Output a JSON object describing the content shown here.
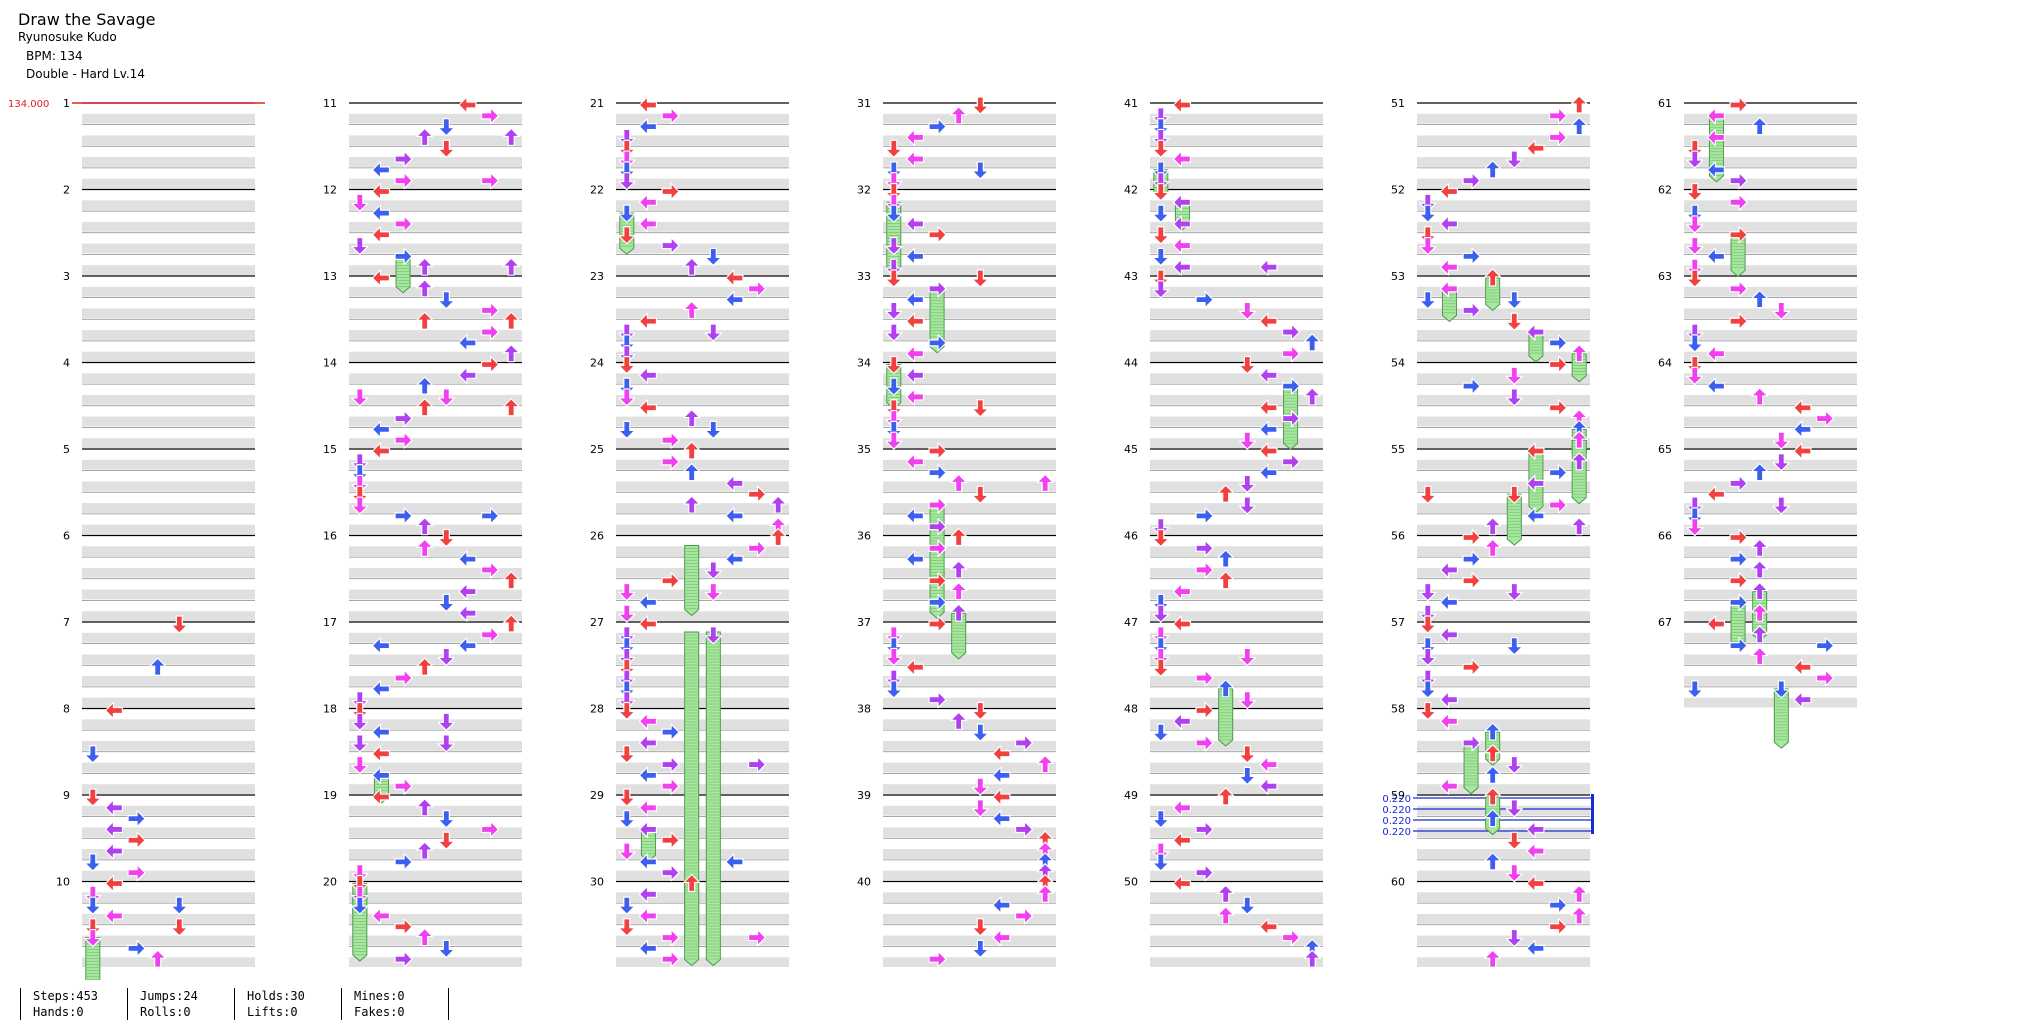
{
  "song": {
    "title": "Draw the Savage",
    "artist": "Ryunosuke Kudo",
    "bpm_label": "BPM: 134",
    "difficulty": "Double - Hard Lv.14"
  },
  "chart_meta": {
    "measures": 67,
    "columns_of_measures": 7,
    "measures_per_column": 10,
    "lanes": 8,
    "start_bpm_label": "134.000",
    "scroll_labels": [
      "0.220",
      "0.220",
      "0.220",
      "0.220"
    ],
    "colors": {
      "quarter": "#f04040",
      "eighth": "#3c5ff0",
      "sixteenth": "#f040f0",
      "twelfth": "#b040f0",
      "hold": "#a8e6a1",
      "hold_border": "#4a9a4a",
      "band": "#e0e0e0",
      "bpm_marker": "#e02020",
      "scroll_marker": "#1a2ad0"
    }
  },
  "stats": [
    [
      "Steps:453",
      "Hands:0"
    ],
    [
      "Jumps:24",
      "Rolls:0"
    ],
    [
      "Holds:30",
      "Lifts:0"
    ],
    [
      "Mines:0",
      "Fakes:0"
    ]
  ]
}
